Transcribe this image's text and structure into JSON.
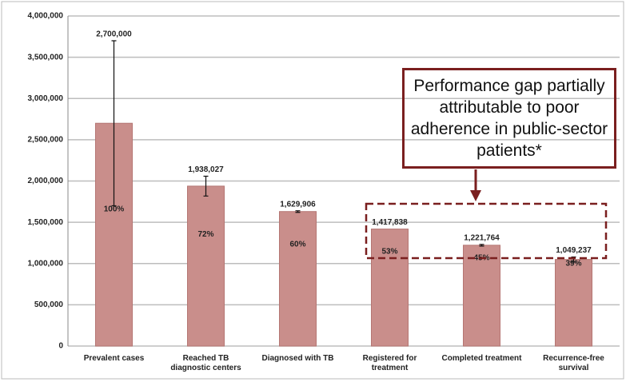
{
  "chart_data": {
    "type": "bar",
    "categories": [
      "Prevalent cases",
      "Reached TB diagnostic centers",
      "Diagnosed with TB",
      "Registered for treatment",
      "Completed treatment",
      "Recurrence-free survival"
    ],
    "values": [
      2700000,
      1938027,
      1629906,
      1417838,
      1221764,
      1049237
    ],
    "value_labels": [
      "2,700,000",
      "1,938,027",
      "1,629,906",
      "1,417,838",
      "1,221,764",
      "1,049,237"
    ],
    "errors": [
      1000000,
      120000,
      10000,
      null,
      10000,
      30000
    ],
    "percent_labels": [
      "100%",
      "72%",
      "60%",
      "53%",
      "45%",
      "39%"
    ],
    "color": "#c98e8b",
    "ylim": [
      0,
      4000000
    ],
    "yticks": [
      0,
      {
        "value": 500000,
        "label": "500,000"
      },
      {
        "value": 1000000,
        "label": "1,000,000"
      },
      {
        "value": 1500000,
        "label": "1,500,000"
      },
      {
        "value": 2000000,
        "label": "2,000,000"
      },
      {
        "value": 2500000,
        "label": "2,500,000"
      },
      {
        "value": 3000000,
        "label": "3,000,000"
      },
      {
        "value": 3500000,
        "label": "3,500,000"
      },
      {
        "value": 4000000,
        "label": "4,000,000"
      }
    ],
    "grid": true,
    "annotation": "Performance gap partially attributable to poor adherence in public-sector patients*"
  }
}
